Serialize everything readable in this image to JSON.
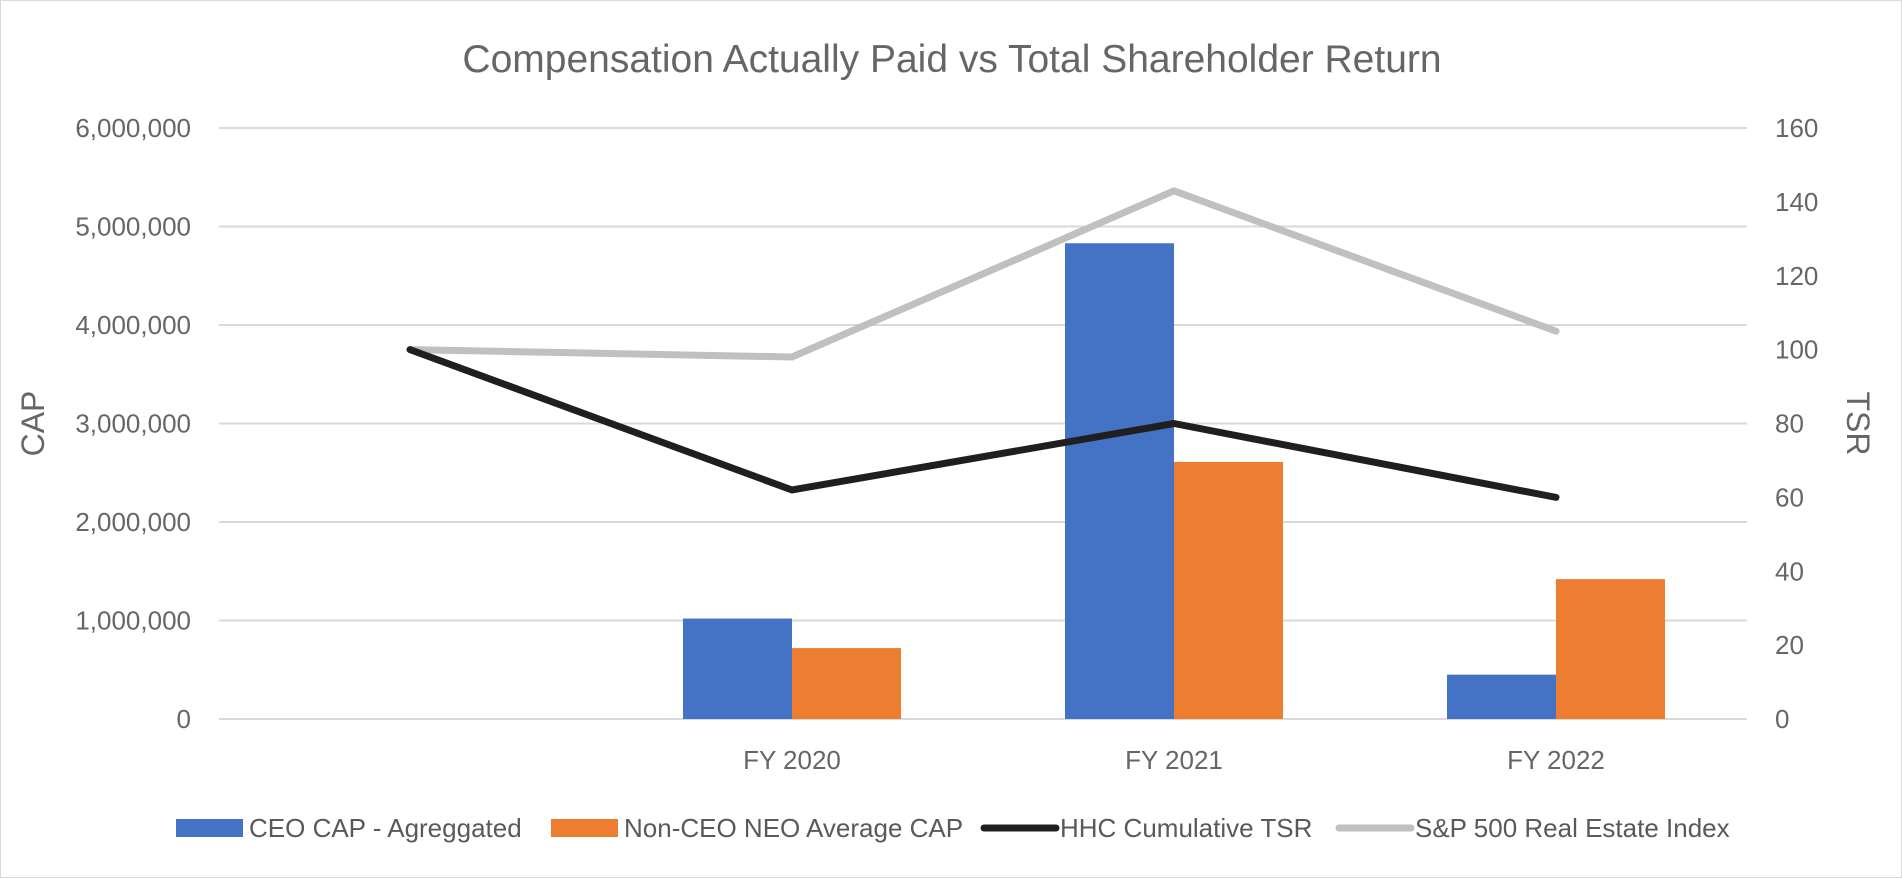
{
  "chart_data": {
    "type": "bar",
    "title": "Compensation Actually Paid vs Total Shareholder Return",
    "categories": [
      "",
      "FY 2020",
      "FY 2021",
      "FY 2022"
    ],
    "y_left": {
      "label": "CAP",
      "min": 0,
      "max": 6000000,
      "step": 1000000,
      "ticks": [
        "0",
        "1,000,000",
        "2,000,000",
        "3,000,000",
        "4,000,000",
        "5,000,000",
        "6,000,000"
      ]
    },
    "y_right": {
      "label": "TSR",
      "min": 0,
      "max": 160,
      "step": 20,
      "ticks": [
        "0",
        "20",
        "40",
        "60",
        "80",
        "100",
        "120",
        "140",
        "160"
      ]
    },
    "bar_series": [
      {
        "name": "CEO CAP - Agreggated",
        "color": "#4472c4",
        "values": [
          null,
          1020000,
          4830000,
          450000
        ]
      },
      {
        "name": "Non-CEO NEO Average CAP",
        "color": "#ed7d31",
        "values": [
          null,
          720000,
          2610000,
          1420000
        ]
      }
    ],
    "line_series": [
      {
        "name": "HHC Cumulative TSR",
        "color": "#1f1f1f",
        "values": [
          100,
          62,
          80,
          60
        ]
      },
      {
        "name": "S&P 500 Real Estate Index",
        "color": "#c0c0c0",
        "values": [
          100,
          98,
          143,
          105
        ]
      }
    ],
    "grid": true,
    "legend_position": "bottom"
  }
}
